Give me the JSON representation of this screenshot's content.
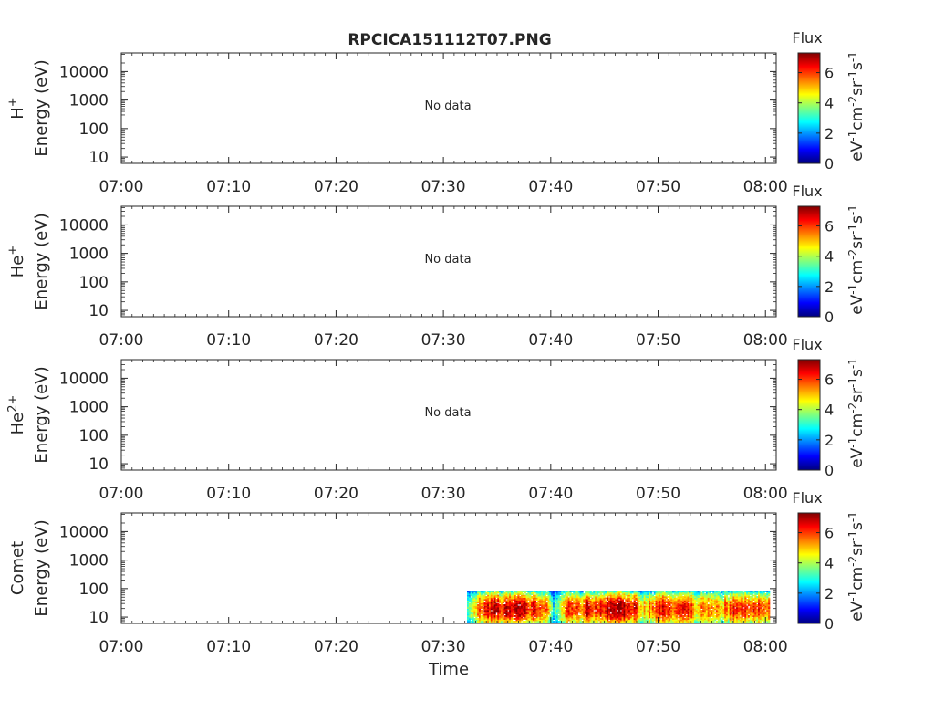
{
  "title": "RPCICA151112T07.PNG",
  "colors": {
    "axis": "#262626",
    "background": "#ffffff",
    "colormap": [
      "#00007f",
      "#0000ff",
      "#007fff",
      "#00ffff",
      "#7fff7f",
      "#ffff00",
      "#ff7f00",
      "#ff0000",
      "#7f0000"
    ]
  },
  "chart_data": [
    {
      "type": "heatmap",
      "ylabel": "Energy (eV)",
      "ylabel_species": "H",
      "ylabel_species_sup": "+",
      "yscale": "log",
      "y_ticks": [
        "10",
        "100",
        "1000",
        "10000"
      ],
      "x_ticks": [
        "07:00",
        "07:10",
        "07:20",
        "07:30",
        "07:40",
        "07:50",
        "08:00"
      ],
      "xlabel": "",
      "message": "No data",
      "colorbar": {
        "label": "Flux",
        "unit_parts": [
          "eV",
          "-1",
          "cm",
          "-2",
          "sr",
          "-1",
          "s",
          "-1"
        ],
        "ticks": [
          "0",
          "2",
          "4",
          "6"
        ],
        "range": [
          0,
          7.3
        ]
      }
    },
    {
      "type": "heatmap",
      "ylabel": "Energy (eV)",
      "ylabel_species": "He",
      "ylabel_species_sup": "+",
      "yscale": "log",
      "y_ticks": [
        "10",
        "100",
        "1000",
        "10000"
      ],
      "x_ticks": [
        "07:00",
        "07:10",
        "07:20",
        "07:30",
        "07:40",
        "07:50",
        "08:00"
      ],
      "xlabel": "",
      "message": "No data",
      "colorbar": {
        "label": "Flux",
        "unit_parts": [
          "eV",
          "-1",
          "cm",
          "-2",
          "sr",
          "-1",
          "s",
          "-1"
        ],
        "ticks": [
          "0",
          "2",
          "4",
          "6"
        ],
        "range": [
          0,
          7.3
        ]
      }
    },
    {
      "type": "heatmap",
      "ylabel": "Energy (eV)",
      "ylabel_species": "He",
      "ylabel_species_sup": "2+",
      "yscale": "log",
      "y_ticks": [
        "10",
        "100",
        "1000",
        "10000"
      ],
      "x_ticks": [
        "07:00",
        "07:10",
        "07:20",
        "07:30",
        "07:40",
        "07:50",
        "08:00"
      ],
      "xlabel": "",
      "message": "No data",
      "colorbar": {
        "label": "Flux",
        "unit_parts": [
          "eV",
          "-1",
          "cm",
          "-2",
          "sr",
          "-1",
          "s",
          "-1"
        ],
        "ticks": [
          "0",
          "2",
          "4",
          "6"
        ],
        "range": [
          0,
          7.3
        ]
      }
    },
    {
      "type": "heatmap",
      "ylabel": "Energy (eV)",
      "ylabel_species": "Comet",
      "ylabel_species_sup": "",
      "yscale": "log",
      "y_ticks": [
        "10",
        "100",
        "1000",
        "10000"
      ],
      "x_ticks": [
        "07:00",
        "07:10",
        "07:20",
        "07:30",
        "07:40",
        "07:50",
        "08:00"
      ],
      "xlabel": "Time",
      "message": "",
      "data_time_range": [
        32.2,
        60.4
      ],
      "data_energy_range": [
        6,
        85
      ],
      "flux_profile": [
        {
          "t": 32.2,
          "f": 3.2
        },
        {
          "t": 33.5,
          "f": 6.0
        },
        {
          "t": 34.5,
          "f": 6.8
        },
        {
          "t": 35.5,
          "f": 6.3
        },
        {
          "t": 36.5,
          "f": 6.9
        },
        {
          "t": 37.5,
          "f": 6.5
        },
        {
          "t": 38.5,
          "f": 6.2
        },
        {
          "t": 39.5,
          "f": 5.8
        },
        {
          "t": 40.3,
          "f": 3.0
        },
        {
          "t": 41.0,
          "f": 4.2
        },
        {
          "t": 41.8,
          "f": 6.6
        },
        {
          "t": 42.5,
          "f": 5.5
        },
        {
          "t": 43.5,
          "f": 6.5
        },
        {
          "t": 44.5,
          "f": 6.4
        },
        {
          "t": 45.5,
          "f": 6.9
        },
        {
          "t": 46.5,
          "f": 7.1
        },
        {
          "t": 47.5,
          "f": 6.6
        },
        {
          "t": 48.5,
          "f": 5.2
        },
        {
          "t": 49.5,
          "f": 5.6
        },
        {
          "t": 50.5,
          "f": 6.3
        },
        {
          "t": 51.5,
          "f": 5.6
        },
        {
          "t": 52.5,
          "f": 6.6
        },
        {
          "t": 53.5,
          "f": 5.1
        },
        {
          "t": 54.5,
          "f": 5.4
        },
        {
          "t": 55.5,
          "f": 5.0
        },
        {
          "t": 56.5,
          "f": 5.6
        },
        {
          "t": 57.5,
          "f": 6.2
        },
        {
          "t": 58.5,
          "f": 5.7
        },
        {
          "t": 59.5,
          "f": 6.4
        },
        {
          "t": 60.4,
          "f": 6.0
        }
      ],
      "colorbar": {
        "label": "Flux",
        "unit_parts": [
          "eV",
          "-1",
          "cm",
          "-2",
          "sr",
          "-1",
          "s",
          "-1"
        ],
        "ticks": [
          "0",
          "2",
          "4",
          "6"
        ],
        "range": [
          0,
          7.3
        ]
      }
    }
  ]
}
